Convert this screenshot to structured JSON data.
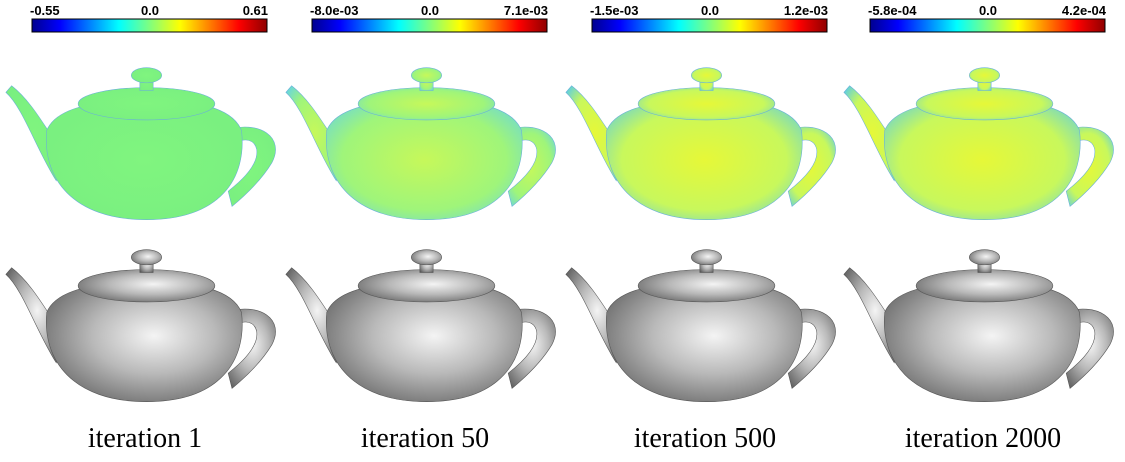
{
  "panels": [
    {
      "colorbar": {
        "min": "-0.55",
        "mid": "0.0",
        "max": "0.61"
      },
      "caption": "iteration 1"
    },
    {
      "colorbar": {
        "min": "-8.0e-03",
        "mid": "0.0",
        "max": "7.1e-03"
      },
      "caption": "iteration 50"
    },
    {
      "colorbar": {
        "min": "-1.5e-03",
        "mid": "0.0",
        "max": "1.2e-03"
      },
      "caption": "iteration 500"
    },
    {
      "colorbar": {
        "min": "-5.8e-04",
        "mid": "0.0",
        "max": "4.2e-04"
      },
      "caption": "iteration 2000"
    }
  ]
}
